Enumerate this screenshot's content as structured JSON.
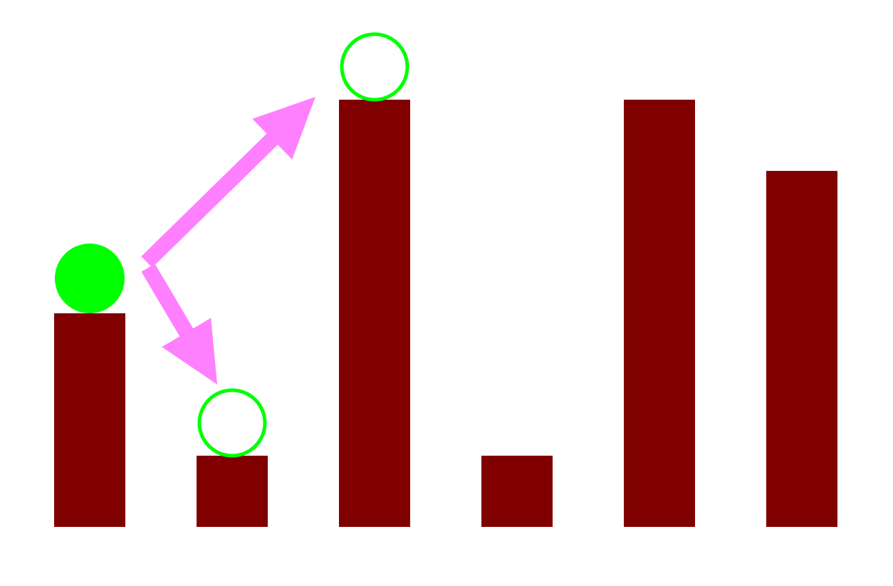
{
  "colors": {
    "background": "#ffffff",
    "pillar": "#800000",
    "player": "#00ff00",
    "target_ring": "#00ff00",
    "move_arrow": "#ff80ff"
  },
  "pillars": {
    "heights": [
      3,
      1,
      6,
      1,
      6,
      5
    ]
  },
  "player": {
    "pillar_index": 0
  },
  "targets": [
    {
      "pillar_index": 1
    },
    {
      "pillar_index": 2
    }
  ],
  "moves": [
    {
      "from_pillar": 0,
      "to_pillar": 2,
      "icon": "arrow-up-right"
    },
    {
      "from_pillar": 0,
      "to_pillar": 1,
      "icon": "arrow-down-right"
    }
  ]
}
